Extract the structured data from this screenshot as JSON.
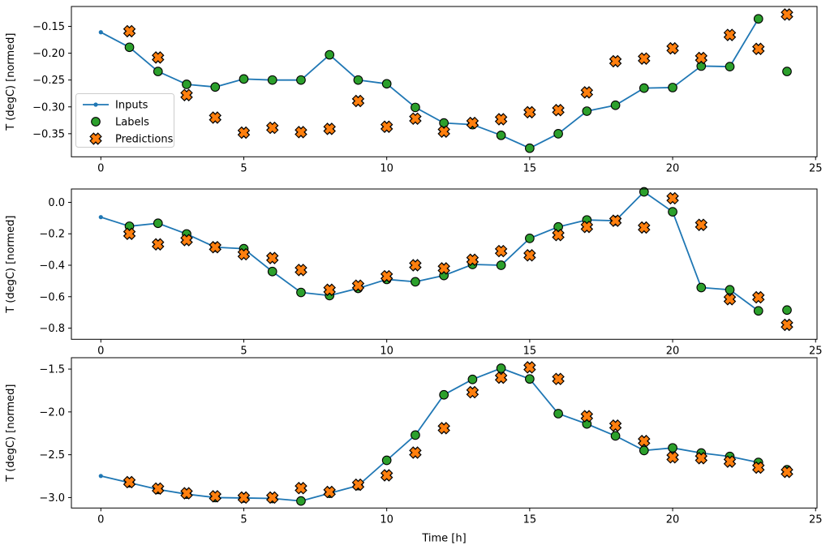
{
  "figure": {
    "background": "#ffffff",
    "xlabel": "Time [h]",
    "ylabel": "T (degC) [normed]"
  },
  "colors": {
    "inputs": "#1f77b4",
    "labels": "#2ca02c",
    "predictions": "#ff7f0e",
    "marker_edge": "#000000",
    "legend_border": "#cccccc"
  },
  "legend": {
    "entries": [
      {
        "label": "Inputs",
        "marker": "line-dot"
      },
      {
        "label": "Labels",
        "marker": "circle"
      },
      {
        "label": "Predictions",
        "marker": "x-cross"
      }
    ]
  },
  "chart_data": [
    {
      "type": "line",
      "title": "",
      "xlabel": "",
      "ylabel": "T (degC) [normed]",
      "xlim": [
        -1.03,
        25.05
      ],
      "ylim": [
        -0.393,
        -0.113
      ],
      "xticks": [
        0,
        5,
        10,
        15,
        20,
        25
      ],
      "xtick_labels": [
        "0",
        "5",
        "10",
        "15",
        "20",
        "25"
      ],
      "yticks": [
        -0.15,
        -0.2,
        -0.25,
        -0.3,
        -0.35
      ],
      "ytick_labels": [
        "−0.15",
        "−0.20",
        "−0.25",
        "−0.30",
        "−0.35"
      ],
      "grid": false,
      "legend_position": "upper-left-inside",
      "series": [
        {
          "name": "Inputs",
          "type": "line",
          "x": [
            0,
            1,
            2,
            3,
            4,
            5,
            6,
            7,
            8,
            9,
            10,
            11,
            12,
            13,
            14,
            15,
            16,
            17,
            18,
            19,
            20,
            21,
            22,
            23
          ],
          "y": [
            -0.161,
            -0.189,
            -0.234,
            -0.258,
            -0.263,
            -0.248,
            -0.25,
            -0.25,
            -0.203,
            -0.25,
            -0.257,
            -0.301,
            -0.33,
            -0.333,
            -0.353,
            -0.377,
            -0.35,
            -0.308,
            -0.297,
            -0.265,
            -0.264,
            -0.224,
            -0.225,
            -0.136
          ]
        },
        {
          "name": "Labels",
          "type": "scatter_circle",
          "x": [
            1,
            2,
            3,
            4,
            5,
            6,
            7,
            8,
            9,
            10,
            11,
            12,
            13,
            14,
            15,
            16,
            17,
            18,
            19,
            20,
            21,
            22,
            23,
            24
          ],
          "y": [
            -0.189,
            -0.234,
            -0.258,
            -0.263,
            -0.248,
            -0.25,
            -0.25,
            -0.203,
            -0.25,
            -0.257,
            -0.301,
            -0.33,
            -0.333,
            -0.353,
            -0.377,
            -0.35,
            -0.308,
            -0.297,
            -0.265,
            -0.264,
            -0.224,
            -0.225,
            -0.136,
            -0.234
          ]
        },
        {
          "name": "Predictions",
          "type": "scatter_x",
          "x": [
            1,
            2,
            3,
            4,
            5,
            6,
            7,
            8,
            9,
            10,
            11,
            12,
            13,
            14,
            15,
            16,
            17,
            18,
            19,
            20,
            21,
            22,
            23,
            24
          ],
          "y": [
            -0.159,
            -0.208,
            -0.278,
            -0.32,
            -0.348,
            -0.339,
            -0.347,
            -0.341,
            -0.289,
            -0.337,
            -0.322,
            -0.346,
            -0.33,
            -0.323,
            -0.31,
            -0.306,
            -0.273,
            -0.215,
            -0.21,
            -0.191,
            -0.209,
            -0.166,
            -0.192,
            -0.128
          ]
        }
      ]
    },
    {
      "type": "line",
      "title": "",
      "xlabel": "",
      "ylabel": "T (degC) [normed]",
      "xlim": [
        -1.03,
        25.05
      ],
      "ylim": [
        -0.871,
        0.085
      ],
      "xticks": [
        0,
        5,
        10,
        15,
        20,
        25
      ],
      "xtick_labels": [
        "0",
        "5",
        "10",
        "15",
        "20",
        "25"
      ],
      "yticks": [
        0.0,
        -0.2,
        -0.4,
        -0.6,
        -0.8
      ],
      "ytick_labels": [
        "0.0",
        "−0.2",
        "−0.4",
        "−0.6",
        "−0.8"
      ],
      "grid": false,
      "legend_position": "none",
      "series": [
        {
          "name": "Inputs",
          "type": "line",
          "x": [
            0,
            1,
            2,
            3,
            4,
            5,
            6,
            7,
            8,
            9,
            10,
            11,
            12,
            13,
            14,
            15,
            16,
            17,
            18,
            19,
            20,
            21,
            22,
            23
          ],
          "y": [
            -0.094,
            -0.152,
            -0.133,
            -0.201,
            -0.285,
            -0.295,
            -0.44,
            -0.573,
            -0.593,
            -0.547,
            -0.49,
            -0.505,
            -0.465,
            -0.395,
            -0.4,
            -0.229,
            -0.156,
            -0.112,
            -0.117,
            0.067,
            -0.06,
            -0.542,
            -0.556,
            -0.69
          ]
        },
        {
          "name": "Labels",
          "type": "scatter_circle",
          "x": [
            1,
            2,
            3,
            4,
            5,
            6,
            7,
            8,
            9,
            10,
            11,
            12,
            13,
            14,
            15,
            16,
            17,
            18,
            19,
            20,
            21,
            22,
            23,
            24
          ],
          "y": [
            -0.152,
            -0.133,
            -0.201,
            -0.285,
            -0.295,
            -0.44,
            -0.573,
            -0.593,
            -0.547,
            -0.49,
            -0.505,
            -0.465,
            -0.395,
            -0.4,
            -0.229,
            -0.156,
            -0.112,
            -0.117,
            0.067,
            -0.06,
            -0.542,
            -0.556,
            -0.69,
            -0.685
          ]
        },
        {
          "name": "Predictions",
          "type": "scatter_x",
          "x": [
            1,
            2,
            3,
            4,
            5,
            6,
            7,
            8,
            9,
            10,
            11,
            12,
            13,
            14,
            15,
            16,
            17,
            18,
            19,
            20,
            21,
            22,
            23,
            24
          ],
          "y": [
            -0.2,
            -0.267,
            -0.24,
            -0.285,
            -0.33,
            -0.354,
            -0.43,
            -0.556,
            -0.53,
            -0.47,
            -0.4,
            -0.42,
            -0.365,
            -0.31,
            -0.337,
            -0.208,
            -0.156,
            -0.117,
            -0.16,
            0.026,
            -0.143,
            -0.616,
            -0.604,
            -0.779
          ]
        }
      ]
    },
    {
      "type": "line",
      "title": "",
      "xlabel": "Time [h]",
      "ylabel": "T (degC) [normed]",
      "xlim": [
        -1.03,
        25.05
      ],
      "ylim": [
        -3.122,
        -1.367
      ],
      "xticks": [
        0,
        5,
        10,
        15,
        20,
        25
      ],
      "xtick_labels": [
        "0",
        "5",
        "10",
        "15",
        "20",
        "25"
      ],
      "yticks": [
        -1.5,
        -2.0,
        -2.5,
        -3.0
      ],
      "ytick_labels": [
        "−1.5",
        "−2.0",
        "−2.5",
        "−3.0"
      ],
      "grid": false,
      "legend_position": "none",
      "series": [
        {
          "name": "Inputs",
          "type": "line",
          "x": [
            0,
            1,
            2,
            3,
            4,
            5,
            6,
            7,
            8,
            9,
            10,
            11,
            12,
            13,
            14,
            15,
            16,
            17,
            18,
            19,
            20,
            21,
            22,
            23
          ],
          "y": [
            -2.748,
            -2.827,
            -2.905,
            -2.96,
            -3.0,
            -3.005,
            -3.01,
            -3.04,
            -2.95,
            -2.86,
            -2.565,
            -2.27,
            -1.8,
            -1.62,
            -1.49,
            -1.615,
            -2.02,
            -2.14,
            -2.28,
            -2.45,
            -2.42,
            -2.48,
            -2.52,
            -2.59
          ]
        },
        {
          "name": "Labels",
          "type": "scatter_circle",
          "x": [
            1,
            2,
            3,
            4,
            5,
            6,
            7,
            8,
            9,
            10,
            11,
            12,
            13,
            14,
            15,
            16,
            17,
            18,
            19,
            20,
            21,
            22,
            23,
            24
          ],
          "y": [
            -2.827,
            -2.905,
            -2.96,
            -3.0,
            -3.005,
            -3.01,
            -3.04,
            -2.95,
            -2.86,
            -2.565,
            -2.27,
            -1.8,
            -1.62,
            -1.49,
            -1.615,
            -2.02,
            -2.14,
            -2.28,
            -2.45,
            -2.42,
            -2.48,
            -2.52,
            -2.59,
            -2.675
          ]
        },
        {
          "name": "Predictions",
          "type": "scatter_x",
          "x": [
            1,
            2,
            3,
            4,
            5,
            6,
            7,
            8,
            9,
            10,
            11,
            12,
            13,
            14,
            15,
            16,
            17,
            18,
            19,
            20,
            21,
            22,
            23,
            24
          ],
          "y": [
            -2.82,
            -2.895,
            -2.95,
            -2.985,
            -3.0,
            -3.0,
            -2.89,
            -2.935,
            -2.85,
            -2.74,
            -2.475,
            -2.19,
            -1.77,
            -1.6,
            -1.48,
            -1.615,
            -2.05,
            -2.16,
            -2.34,
            -2.53,
            -2.54,
            -2.58,
            -2.65,
            -2.7
          ]
        }
      ]
    }
  ]
}
